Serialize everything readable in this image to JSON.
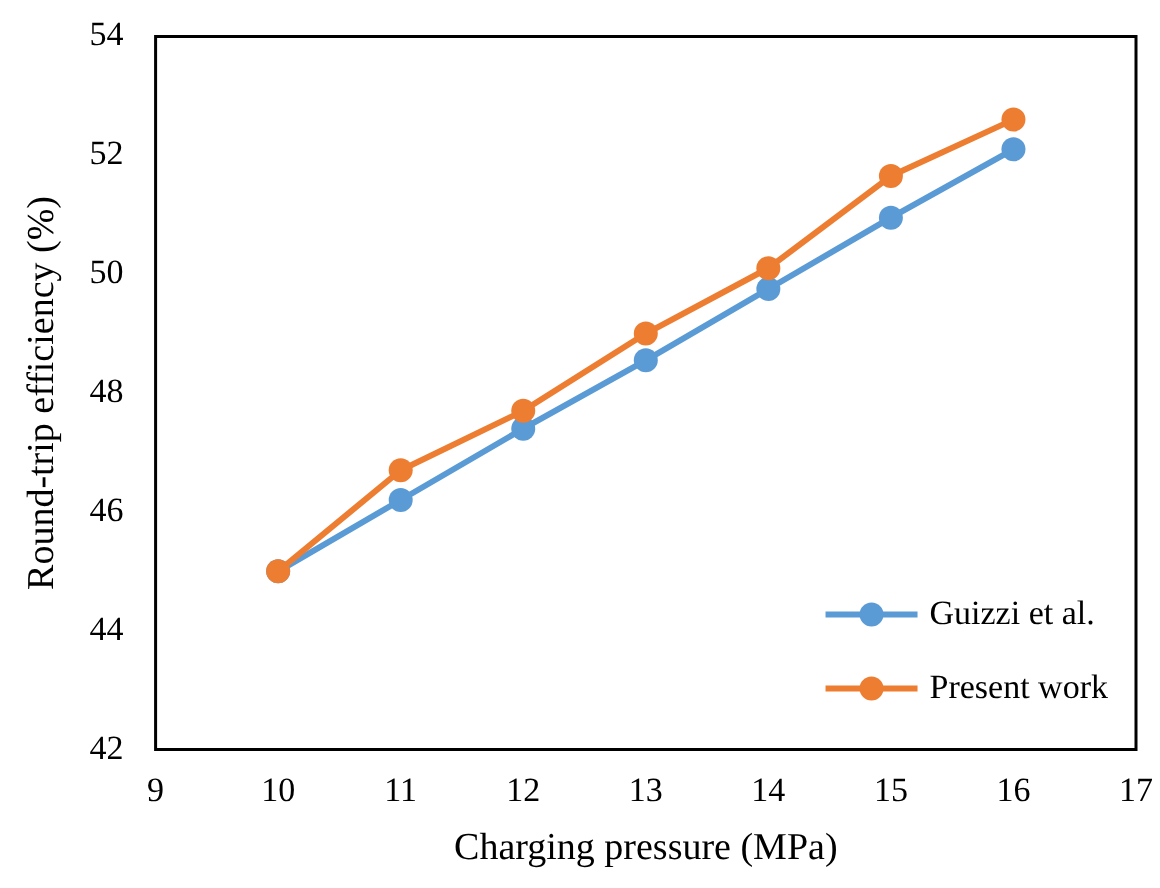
{
  "chart_data": {
    "type": "line",
    "xlabel": "Charging pressure (MPa)",
    "ylabel": "Round-trip efficiency (%)",
    "x": [
      10,
      11,
      12,
      13,
      14,
      15,
      16
    ],
    "series": [
      {
        "name": "Guizzi et al.",
        "color": "#5b9bd5",
        "values": [
          45.0,
          46.2,
          47.4,
          48.55,
          49.75,
          50.95,
          52.1
        ]
      },
      {
        "name": "Present work",
        "color": "#ed7d31",
        "values": [
          45.0,
          46.7,
          47.7,
          49.0,
          50.1,
          51.65,
          52.6
        ]
      }
    ],
    "xlim": [
      9,
      17
    ],
    "xticks": [
      9,
      10,
      11,
      12,
      13,
      14,
      15,
      16,
      17
    ],
    "ylim": [
      42,
      54
    ],
    "yticks": [
      42,
      44,
      46,
      48,
      50,
      52,
      54
    ],
    "grid": false,
    "legend": "bottom right",
    "marker": "circle",
    "line_style": "solid"
  }
}
